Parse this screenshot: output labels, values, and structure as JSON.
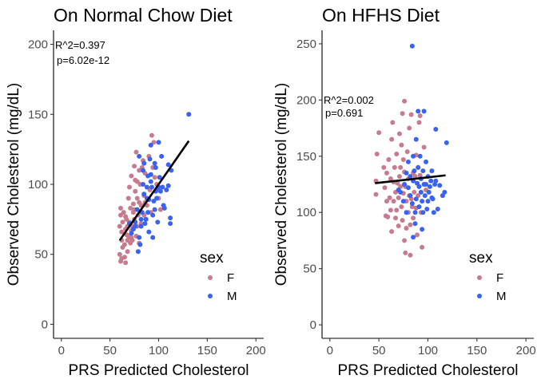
{
  "chart_data": [
    {
      "type": "scatter",
      "title": "On Normal Chow Diet",
      "xlabel": "PRS Predicted Cholesterol",
      "ylabel": "Observed Cholesterol (mg/dL)",
      "xlim": [
        -8,
        208
      ],
      "ylim": [
        -10,
        210
      ],
      "x_ticks": [
        0,
        50,
        100,
        150,
        200
      ],
      "y_ticks": [
        0,
        50,
        100,
        150,
        200
      ],
      "stats": {
        "r2": "R^2=0.397",
        "p": "p=6.02e-12"
      },
      "regression": {
        "x": [
          60,
          131
        ],
        "y": [
          60,
          131
        ]
      },
      "legend": {
        "title": "sex",
        "entries": [
          "F",
          "M"
        ],
        "colors": [
          "#c77b8f",
          "#3a62f0"
        ],
        "position": "right"
      },
      "series": [
        {
          "name": "F",
          "color": "#c77b8f",
          "points": [
            [
              60,
              50
            ],
            [
              61,
              45
            ],
            [
              62,
              47
            ],
            [
              60,
              70
            ],
            [
              61,
              78
            ],
            [
              61,
              83
            ],
            [
              62,
              60
            ],
            [
              62,
              66
            ],
            [
              63,
              55
            ],
            [
              63,
              73
            ],
            [
              64,
              80
            ],
            [
              65,
              48
            ],
            [
              65,
              57
            ],
            [
              66,
              44
            ],
            [
              66,
              68
            ],
            [
              67,
              75
            ],
            [
              67,
              64
            ],
            [
              68,
              70
            ],
            [
              68,
              52
            ],
            [
              69,
              90
            ],
            [
              69,
              63
            ],
            [
              70,
              62
            ],
            [
              70,
              98
            ],
            [
              70,
              73
            ],
            [
              71,
              58
            ],
            [
              71,
              83
            ],
            [
              72,
              67
            ],
            [
              72,
              106
            ],
            [
              73,
              70
            ],
            [
              73,
              60
            ],
            [
              74,
              80
            ],
            [
              74,
              86
            ],
            [
              75,
              75
            ],
            [
              75,
              113
            ],
            [
              76,
              103
            ],
            [
              76,
              95
            ],
            [
              77,
              63
            ],
            [
              77,
              123
            ],
            [
              78,
              70
            ],
            [
              78,
              90
            ],
            [
              79,
              78
            ],
            [
              80,
              58
            ],
            [
              80,
              87
            ],
            [
              80,
              110
            ],
            [
              81,
              100
            ],
            [
              82,
              85
            ],
            [
              83,
              112
            ],
            [
              84,
              117
            ],
            [
              85,
              78
            ],
            [
              85,
              92
            ],
            [
              86,
              87
            ],
            [
              87,
              75
            ],
            [
              88,
              85
            ],
            [
              90,
              120
            ],
            [
              91,
              96
            ],
            [
              92,
              80
            ],
            [
              93,
              135
            ],
            [
              94,
              112
            ],
            [
              95,
              130
            ],
            [
              96,
              105
            ],
            [
              98,
              100
            ],
            [
              100,
              90
            ],
            [
              102,
              82
            ],
            [
              66,
              77
            ],
            [
              68,
              60
            ],
            [
              72,
              62
            ],
            [
              75,
              82
            ],
            [
              78,
              102
            ],
            [
              82,
              72
            ],
            [
              86,
              108
            ]
          ]
        },
        {
          "name": "M",
          "color": "#3a62f0",
          "points": [
            [
              70,
              72
            ],
            [
              72,
              65
            ],
            [
              74,
              68
            ],
            [
              76,
              70
            ],
            [
              78,
              82
            ],
            [
              79,
              52
            ],
            [
              80,
              120
            ],
            [
              80,
              62
            ],
            [
              81,
              57
            ],
            [
              82,
              70
            ],
            [
              83,
              80
            ],
            [
              84,
              110
            ],
            [
              84,
              100
            ],
            [
              85,
              115
            ],
            [
              85,
              93
            ],
            [
              86,
              72
            ],
            [
              87,
              75
            ],
            [
              88,
              98
            ],
            [
              89,
              106
            ],
            [
              89,
              80
            ],
            [
              90,
              66
            ],
            [
              90,
              89
            ],
            [
              91,
              118
            ],
            [
              92,
              128
            ],
            [
              92,
              107
            ],
            [
              93,
              98
            ],
            [
              94,
              78
            ],
            [
              94,
              62
            ],
            [
              95,
              88
            ],
            [
              96,
              115
            ],
            [
              97,
              112
            ],
            [
              97,
              95
            ],
            [
              98,
              96
            ],
            [
              98,
              90
            ],
            [
              99,
              73
            ],
            [
              100,
              130
            ],
            [
              100,
              98
            ],
            [
              101,
              105
            ],
            [
              102,
              95
            ],
            [
              103,
              120
            ],
            [
              104,
              98
            ],
            [
              105,
              85
            ],
            [
              106,
              83
            ],
            [
              110,
              99
            ],
            [
              110,
              114
            ],
            [
              112,
              76
            ],
            [
              112,
              72
            ],
            [
              113,
              110
            ],
            [
              131,
              150
            ],
            [
              76,
              73
            ],
            [
              82,
              75
            ],
            [
              88,
              90
            ],
            [
              92,
              102
            ],
            [
              96,
              82
            ],
            [
              108,
              96
            ]
          ]
        }
      ]
    },
    {
      "type": "scatter",
      "title": "On HFHS Diet",
      "xlabel": "PRS Predicted Cholesterol",
      "ylabel": "Observed Cholesterol (mg/dL)",
      "xlim": [
        -8,
        208
      ],
      "ylim": [
        -12,
        262
      ],
      "x_ticks": [
        0,
        50,
        100,
        150,
        200
      ],
      "y_ticks": [
        0,
        50,
        100,
        150,
        200,
        250
      ],
      "stats": {
        "r2": "R^2=0.002",
        "p": "p=0.691"
      },
      "regression": {
        "x": [
          46,
          118
        ],
        "y": [
          126,
          133
        ]
      },
      "legend": {
        "title": "sex",
        "entries": [
          "F",
          "M"
        ],
        "colors": [
          "#c77b8f",
          "#3a62f0"
        ],
        "position": "right"
      },
      "series": [
        {
          "name": "F",
          "color": "#c77b8f",
          "points": [
            [
              47,
              128
            ],
            [
              47,
              116
            ],
            [
              48,
              152
            ],
            [
              50,
              171
            ],
            [
              55,
              140
            ],
            [
              56,
              122
            ],
            [
              57,
              97
            ],
            [
              58,
              135
            ],
            [
              58,
              110
            ],
            [
              59,
              96
            ],
            [
              60,
              147
            ],
            [
              61,
              113
            ],
            [
              62,
              130
            ],
            [
              62,
              102
            ],
            [
              63,
              83
            ],
            [
              63,
              165
            ],
            [
              64,
              180
            ],
            [
              65,
              127
            ],
            [
              65,
              110
            ],
            [
              66,
              140
            ],
            [
              67,
              95
            ],
            [
              67,
              118
            ],
            [
              68,
              102
            ],
            [
              68,
              152
            ],
            [
              69,
              126
            ],
            [
              70,
              113
            ],
            [
              70,
              88
            ],
            [
              71,
              132
            ],
            [
              71,
              170
            ],
            [
              72,
              140
            ],
            [
              72,
              123
            ],
            [
              73,
              105
            ],
            [
              73,
              160
            ],
            [
              74,
              93
            ],
            [
              74,
              188
            ],
            [
              75,
              147
            ],
            [
              75,
              117
            ],
            [
              76,
              199
            ],
            [
              76,
              75
            ],
            [
              76,
              136
            ],
            [
              77,
              123
            ],
            [
              77,
              64
            ],
            [
              78,
              110
            ],
            [
              78,
              86
            ],
            [
              79,
              154
            ],
            [
              80,
              130
            ],
            [
              80,
              100
            ],
            [
              81,
              115
            ],
            [
              81,
              175
            ],
            [
              82,
              62
            ],
            [
              82,
              89
            ],
            [
              83,
              187
            ],
            [
              83,
              112
            ],
            [
              84,
              105
            ],
            [
              85,
              135
            ],
            [
              85,
              95
            ],
            [
              86,
              118
            ],
            [
              87,
              132
            ],
            [
              88,
              104
            ],
            [
              89,
              80
            ],
            [
              90,
              140
            ],
            [
              90,
              115
            ],
            [
              91,
              180
            ],
            [
              92,
              133
            ],
            [
              93,
              100
            ],
            [
              94,
              69
            ],
            [
              96,
              158
            ],
            [
              98,
              120
            ],
            [
              88,
              151
            ],
            [
              92,
              186
            ]
          ]
        },
        {
          "name": "M",
          "color": "#3a62f0",
          "points": [
            [
              70,
              120
            ],
            [
              72,
              118
            ],
            [
              75,
              110
            ],
            [
              76,
              125
            ],
            [
              78,
              100
            ],
            [
              78,
              135
            ],
            [
              80,
              122
            ],
            [
              80,
              145
            ],
            [
              82,
              115
            ],
            [
              82,
              132
            ],
            [
              84,
              248
            ],
            [
              84,
              108
            ],
            [
              85,
              128
            ],
            [
              85,
              150
            ],
            [
              86,
              137
            ],
            [
              87,
              90
            ],
            [
              87,
              100
            ],
            [
              88,
              165
            ],
            [
              88,
              112
            ],
            [
              89,
              126
            ],
            [
              90,
              190
            ],
            [
              90,
              140
            ],
            [
              91,
              123
            ],
            [
              91,
              105
            ],
            [
              92,
              150
            ],
            [
              93,
              118
            ],
            [
              93,
              130
            ],
            [
              94,
              110
            ],
            [
              95,
              137
            ],
            [
              95,
              100
            ],
            [
              96,
              190
            ],
            [
              96,
              125
            ],
            [
              97,
              115
            ],
            [
              98,
              125
            ],
            [
              98,
              145
            ],
            [
              99,
              103
            ],
            [
              100,
              132
            ],
            [
              100,
              110
            ],
            [
              101,
              118
            ],
            [
              102,
              123
            ],
            [
              103,
              128
            ],
            [
              104,
              137
            ],
            [
              104,
              113
            ],
            [
              105,
              112
            ],
            [
              106,
              100
            ],
            [
              107,
              125
            ],
            [
              108,
              174
            ],
            [
              108,
              128
            ],
            [
              110,
              103
            ],
            [
              112,
              124
            ],
            [
              115,
              115
            ],
            [
              117,
              118
            ],
            [
              119,
              162
            ],
            [
              85,
              78
            ],
            [
              94,
              85
            ]
          ]
        }
      ]
    }
  ]
}
